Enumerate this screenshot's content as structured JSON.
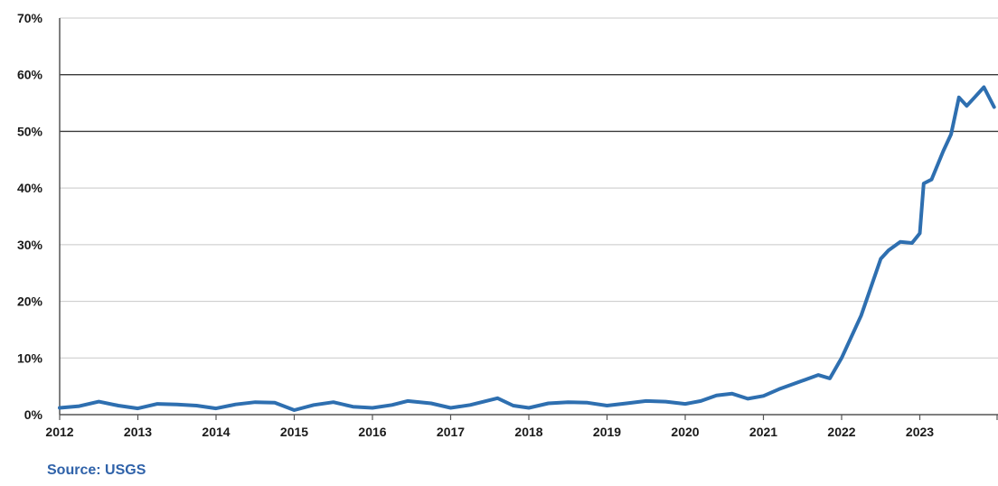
{
  "source": "Source:  USGS",
  "chart_data": {
    "type": "line",
    "title": "",
    "xlabel": "",
    "ylabel": "",
    "x_ticks": [
      "2012",
      "2013",
      "2014",
      "2015",
      "2016",
      "2017",
      "2018",
      "2019",
      "2020",
      "2021",
      "2022",
      "2023"
    ],
    "y_ticks": [
      "0%",
      "10%",
      "20%",
      "30%",
      "40%",
      "50%",
      "60%",
      "70%"
    ],
    "xlim": [
      2012,
      2024
    ],
    "ylim": [
      0,
      70
    ],
    "grid": true,
    "emphasized_gridlines": [
      50,
      60
    ],
    "series": [
      {
        "color": "#2e6fb0",
        "x": [
          2012.0,
          2012.25,
          2012.5,
          2012.75,
          2013.0,
          2013.25,
          2013.5,
          2013.75,
          2014.0,
          2014.25,
          2014.5,
          2014.75,
          2015.0,
          2015.25,
          2015.5,
          2015.75,
          2016.0,
          2016.25,
          2016.45,
          2016.75,
          2017.0,
          2017.25,
          2017.6,
          2017.8,
          2018.0,
          2018.25,
          2018.5,
          2018.75,
          2019.0,
          2019.25,
          2019.5,
          2019.75,
          2020.0,
          2020.2,
          2020.4,
          2020.6,
          2020.8,
          2021.0,
          2021.2,
          2021.5,
          2021.7,
          2021.85,
          2022.0,
          2022.25,
          2022.5,
          2022.6,
          2022.75,
          2022.9,
          2023.0,
          2023.05,
          2023.15,
          2023.3,
          2023.4,
          2023.5,
          2023.6,
          2023.7,
          2023.82,
          2023.95
        ],
        "y": [
          1.2,
          1.5,
          2.3,
          1.6,
          1.1,
          1.9,
          1.8,
          1.6,
          1.1,
          1.8,
          2.2,
          2.1,
          0.8,
          1.7,
          2.2,
          1.4,
          1.2,
          1.7,
          2.4,
          2.0,
          1.2,
          1.7,
          2.9,
          1.6,
          1.2,
          2.0,
          2.2,
          2.1,
          1.6,
          2.0,
          2.4,
          2.3,
          1.9,
          2.4,
          3.4,
          3.7,
          2.8,
          3.3,
          4.5,
          6.0,
          7.0,
          6.4,
          10.0,
          17.5,
          27.5,
          29.0,
          30.5,
          30.3,
          32.0,
          40.8,
          41.5,
          46.5,
          49.5,
          56.0,
          54.5,
          56.0,
          57.8,
          54.3
        ]
      }
    ]
  }
}
